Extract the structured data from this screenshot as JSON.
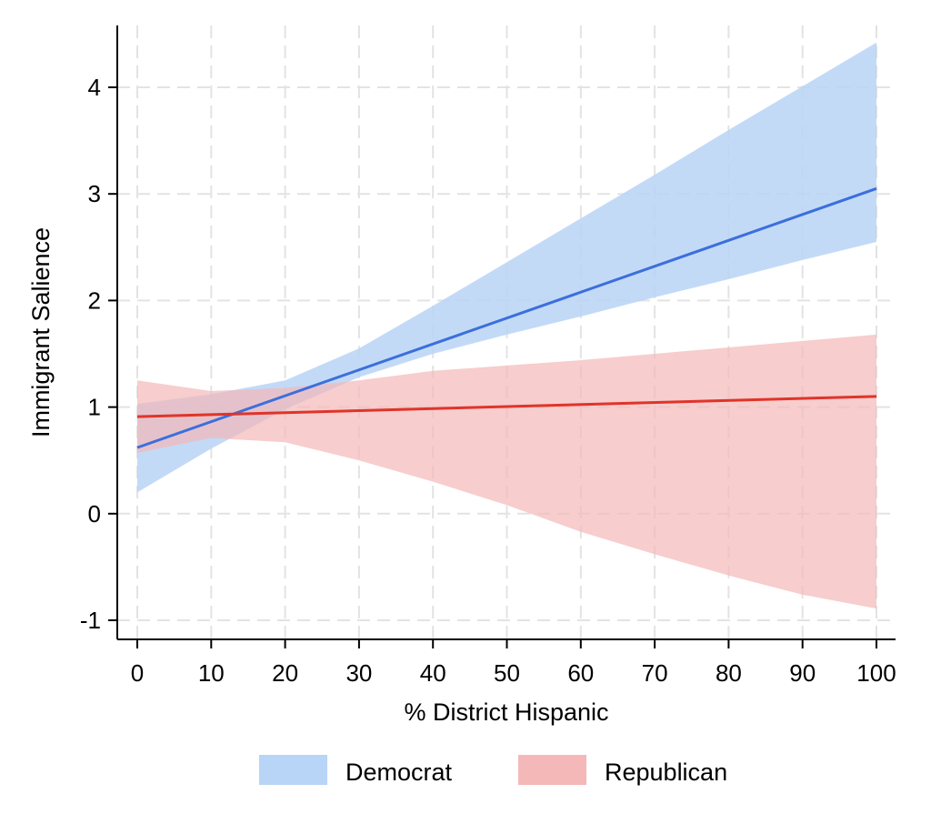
{
  "chart_data": {
    "type": "line",
    "xlabel": "% District Hispanic",
    "ylabel": "Immigrant Salience",
    "xlim": [
      0,
      100
    ],
    "ylim": [
      -1,
      4.5
    ],
    "xticks": [
      0,
      10,
      20,
      30,
      40,
      50,
      60,
      70,
      80,
      90,
      100
    ],
    "yticks": [
      -1,
      0,
      1,
      2,
      3,
      4
    ],
    "grid": true,
    "legend_position": "bottom",
    "series": [
      {
        "name": "Democrat",
        "color": "#3b6fdc",
        "band_color": "#b8d4f6",
        "x": [
          0,
          100
        ],
        "y": [
          0.62,
          3.05
        ],
        "ci_x": [
          0,
          10,
          20,
          30,
          40,
          50,
          60,
          70,
          80,
          90,
          100
        ],
        "ci_lower": [
          0.2,
          0.61,
          0.98,
          1.28,
          1.5,
          1.68,
          1.85,
          2.03,
          2.2,
          2.38,
          2.55
        ],
        "ci_upper": [
          1.03,
          1.12,
          1.25,
          1.55,
          1.95,
          2.36,
          2.77,
          3.18,
          3.6,
          4.01,
          4.42
        ]
      },
      {
        "name": "Republican",
        "color": "#e0342a",
        "band_color": "#f4b8b8",
        "x": [
          0,
          100
        ],
        "y": [
          0.91,
          1.1
        ],
        "ci_x": [
          0,
          10,
          20,
          30,
          40,
          50,
          60,
          70,
          80,
          90,
          100
        ],
        "ci_lower": [
          0.57,
          0.71,
          0.67,
          0.5,
          0.3,
          0.08,
          -0.17,
          -0.38,
          -0.58,
          -0.76,
          -0.89
        ],
        "ci_upper": [
          1.25,
          1.15,
          1.18,
          1.25,
          1.34,
          1.39,
          1.44,
          1.5,
          1.56,
          1.62,
          1.68
        ]
      }
    ]
  }
}
